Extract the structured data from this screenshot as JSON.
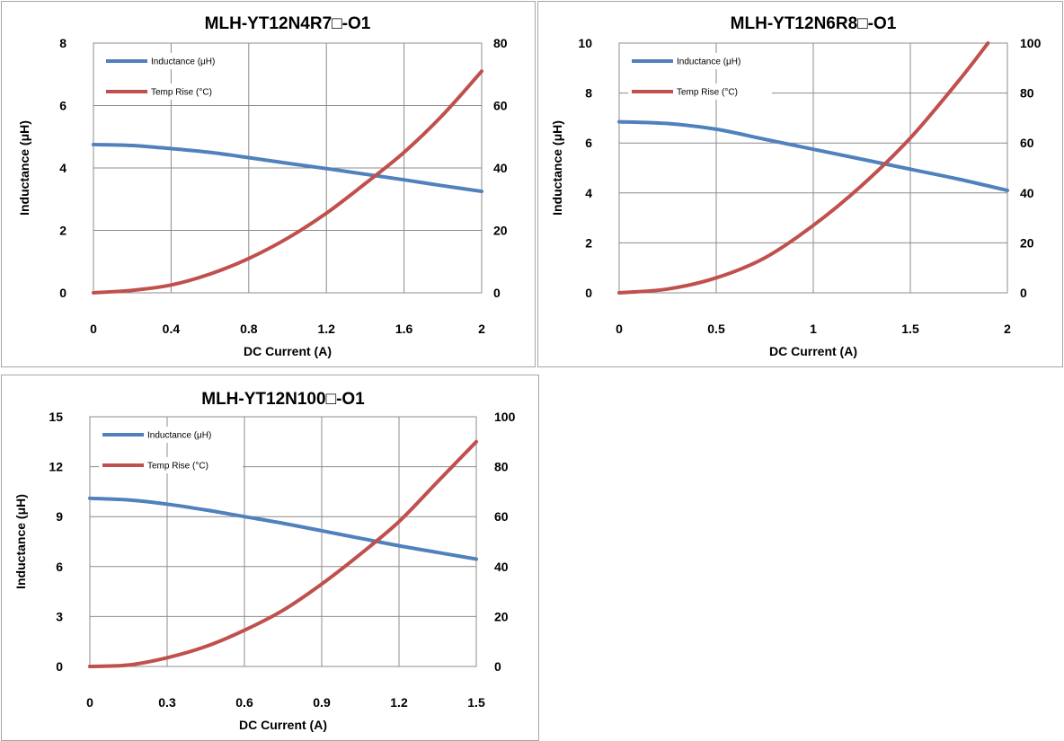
{
  "chart_data": [
    {
      "type": "line",
      "title": "MLH-YT12N4R7",
      "title_suffix": "-O1",
      "xlabel": "DC Current (A)",
      "ylabel": "Inductance (μH)",
      "xlim": [
        0,
        2
      ],
      "ylim": [
        0,
        8
      ],
      "y2lim": [
        0,
        80
      ],
      "xticks": [
        "0",
        "0.4",
        "0.8",
        "1.2",
        "1.6",
        "2"
      ],
      "yticks": [
        "0",
        "2",
        "4",
        "6",
        "8"
      ],
      "y2ticks": [
        "0",
        "20",
        "40",
        "60",
        "80"
      ],
      "grid": true,
      "legend": "top-left",
      "series": [
        {
          "name": "Inductance (μH)",
          "axis": "left",
          "color": "#4f81bd",
          "x": [
            0,
            0.2,
            0.4,
            0.6,
            0.8,
            1.0,
            1.2,
            1.4,
            1.6,
            1.8,
            2.0
          ],
          "y": [
            4.75,
            4.72,
            4.62,
            4.5,
            4.33,
            4.15,
            3.98,
            3.8,
            3.62,
            3.43,
            3.25
          ]
        },
        {
          "name": "Temp Rise (°C)",
          "axis": "right",
          "color": "#c0504d",
          "x": [
            0,
            0.2,
            0.4,
            0.6,
            0.8,
            1.0,
            1.2,
            1.4,
            1.6,
            1.8,
            2.0
          ],
          "y": [
            0,
            0.8,
            2.5,
            6,
            11,
            17.5,
            25.5,
            35,
            45,
            57,
            71
          ]
        }
      ]
    },
    {
      "type": "line",
      "title": "MLH-YT12N6R8",
      "title_suffix": "-O1",
      "xlabel": "DC Current (A)",
      "ylabel": "Inductance (μH)",
      "xlim": [
        0,
        2
      ],
      "ylim": [
        0,
        10
      ],
      "y2lim": [
        0,
        100
      ],
      "xticks": [
        "0",
        "0.5",
        "1",
        "1.5",
        "2"
      ],
      "yticks": [
        "0",
        "2",
        "4",
        "6",
        "8",
        "10"
      ],
      "y2ticks": [
        "0",
        "20",
        "40",
        "60",
        "80",
        "100"
      ],
      "grid": true,
      "legend": "top-left",
      "series": [
        {
          "name": "Inductance (μH)",
          "axis": "left",
          "color": "#4f81bd",
          "x": [
            0,
            0.25,
            0.5,
            0.75,
            1.0,
            1.25,
            1.5,
            1.75,
            2.0
          ],
          "y": [
            6.85,
            6.78,
            6.55,
            6.15,
            5.75,
            5.35,
            4.95,
            4.55,
            4.1
          ]
        },
        {
          "name": "Temp Rise (°C)",
          "axis": "right",
          "color": "#c0504d",
          "x": [
            0,
            0.25,
            0.5,
            0.75,
            1.0,
            1.25,
            1.5,
            1.75,
            1.9
          ],
          "y": [
            0,
            1.5,
            6,
            14,
            27,
            43,
            62,
            85,
            100
          ]
        }
      ]
    },
    {
      "type": "line",
      "title": "MLH-YT12N100",
      "title_suffix": "-O1",
      "xlabel": "DC Current (A)",
      "ylabel": "Inductance (μH)",
      "xlim": [
        0,
        1.5
      ],
      "ylim": [
        0,
        15
      ],
      "y2lim": [
        0,
        100
      ],
      "xticks": [
        "0",
        "0.3",
        "0.6",
        "0.9",
        "1.2",
        "1.5"
      ],
      "yticks": [
        "0",
        "3",
        "6",
        "9",
        "12",
        "15"
      ],
      "y2ticks": [
        "0",
        "20",
        "40",
        "60",
        "80",
        "100"
      ],
      "grid": true,
      "legend": "top-left",
      "series": [
        {
          "name": "Inductance (μH)",
          "axis": "left",
          "color": "#4f81bd",
          "x": [
            0,
            0.15,
            0.3,
            0.45,
            0.6,
            0.75,
            0.9,
            1.05,
            1.2,
            1.35,
            1.5
          ],
          "y": [
            10.1,
            10.0,
            9.75,
            9.4,
            9.0,
            8.6,
            8.15,
            7.7,
            7.25,
            6.85,
            6.45
          ]
        },
        {
          "name": "Temp Rise (°C)",
          "axis": "right",
          "color": "#c0504d",
          "x": [
            0,
            0.15,
            0.3,
            0.45,
            0.6,
            0.75,
            0.9,
            1.05,
            1.2,
            1.35,
            1.5
          ],
          "y": [
            0,
            0.6,
            3.5,
            8,
            14.5,
            22.5,
            33,
            45,
            58,
            74,
            90
          ]
        }
      ]
    }
  ]
}
